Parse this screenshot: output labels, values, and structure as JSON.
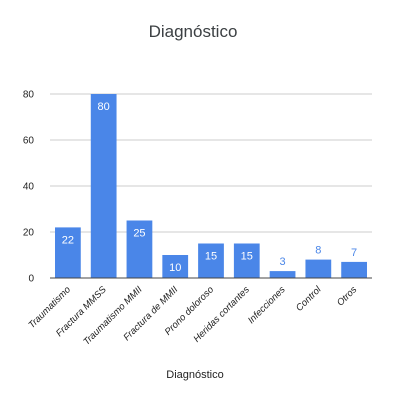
{
  "chart_data": {
    "type": "bar",
    "title": "Diagnóstico",
    "xlabel": "Diagnóstico",
    "ylabel": "",
    "categories": [
      "Traumatismo",
      "Fractura MMSS",
      "Traumatismo MMII",
      "Fractura de MMII",
      "Prono doloroso",
      "Heridas cortantes",
      "Infecciones",
      "Control",
      "Otros"
    ],
    "values": [
      22,
      80,
      25,
      10,
      15,
      15,
      3,
      8,
      7
    ],
    "ylim": [
      0,
      80
    ],
    "yticks": [
      0,
      20,
      40,
      60,
      80
    ],
    "grid": true,
    "legend": "none",
    "bar_color": "#4a86e8",
    "grid_color": "#cccccc",
    "axis_color": "#444444"
  }
}
